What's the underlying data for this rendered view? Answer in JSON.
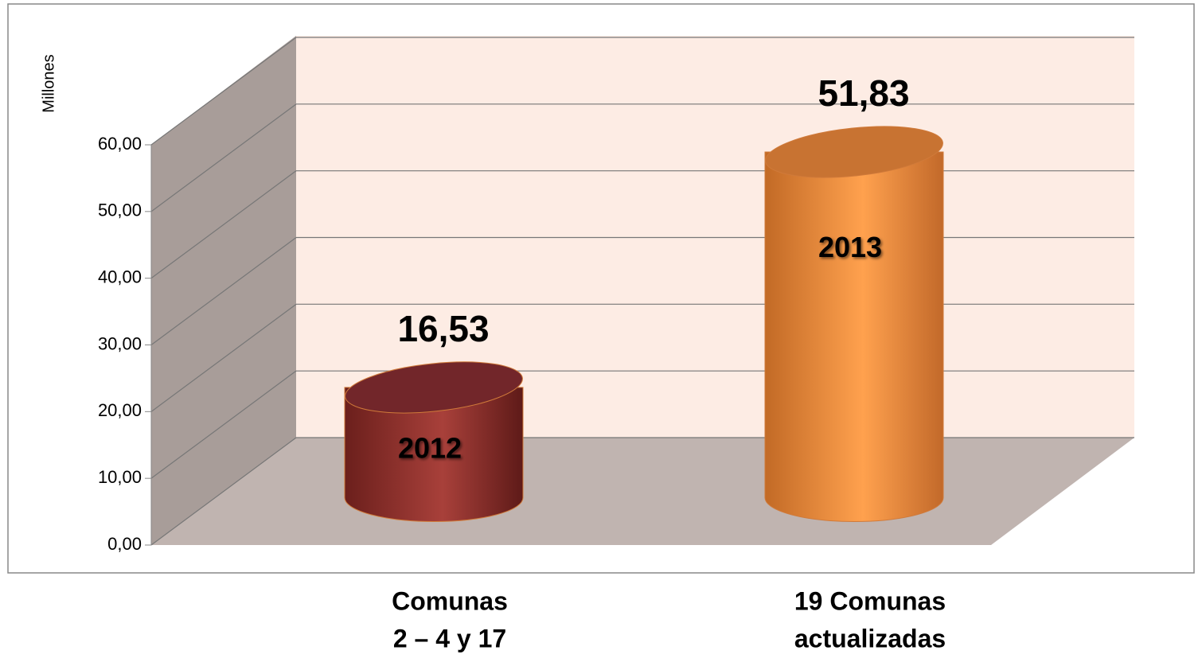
{
  "chart_data": {
    "type": "cylinder",
    "y_axis_label": "Millones",
    "categories": [
      [
        "Comunas",
        "2 – 4 y 17"
      ],
      [
        "19 Comunas",
        "actualizadas"
      ]
    ],
    "values": [
      16.53,
      51.83
    ],
    "value_labels": [
      "16,53",
      "51,83"
    ],
    "bar_labels": [
      "2012",
      "2013"
    ],
    "colors": [
      "#a33b36",
      "#ff9e4a"
    ],
    "ylim": [
      0,
      60
    ],
    "yticks": [
      {
        "value": 0,
        "label": "0,00"
      },
      {
        "value": 10,
        "label": "10,00"
      },
      {
        "value": 20,
        "label": "20,00"
      },
      {
        "value": 30,
        "label": "30,00"
      },
      {
        "value": 40,
        "label": "40,00"
      },
      {
        "value": 50,
        "label": "50,00"
      },
      {
        "value": 60,
        "label": "60,00"
      }
    ],
    "grid": true
  }
}
